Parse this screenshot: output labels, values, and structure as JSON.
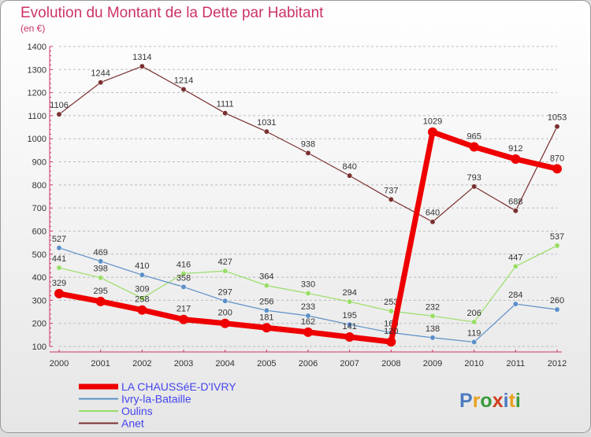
{
  "chart_data": {
    "type": "line",
    "title": "Evolution du Montant de la Dette par Habitant",
    "subtitle": "(en €)",
    "ylim": [
      100,
      1400
    ],
    "y_ticks": [
      100,
      200,
      300,
      400,
      500,
      600,
      700,
      800,
      900,
      1000,
      1100,
      1200,
      1300,
      1400
    ],
    "x": [
      "2000",
      "2001",
      "2002",
      "2003",
      "2004",
      "2005",
      "2006",
      "2007",
      "2008",
      "2009",
      "2010",
      "2011",
      "2012"
    ],
    "grid": "horizontal dashed",
    "legend_position": "bottom-left",
    "series": [
      {
        "name": "LA CHAUSSéE-D'IVRY",
        "color": "#ee0000",
        "values": [
          329,
          295,
          258,
          217,
          200,
          181,
          162,
          141,
          120,
          1029,
          965,
          912,
          870
        ]
      },
      {
        "name": "Ivry-la-Bataille",
        "color": "#5b8fc7",
        "values": [
          527,
          469,
          410,
          358,
          297,
          256,
          233,
          195,
          160,
          138,
          119,
          284,
          260
        ]
      },
      {
        "name": "Oulins",
        "color": "#99dd66",
        "values": [
          441,
          398,
          309,
          416,
          427,
          364,
          330,
          294,
          253,
          232,
          206,
          447,
          537
        ]
      },
      {
        "name": "Anet",
        "color": "#7a3030",
        "values": [
          1106,
          1244,
          1314,
          1214,
          1111,
          1031,
          938,
          840,
          737,
          640,
          793,
          688,
          1053
        ]
      }
    ],
    "labels": {
      "LA CHAUSSéE-D'IVRY": [
        "329",
        "295",
        "258",
        "217",
        "200",
        "181",
        "162",
        "141",
        "120",
        "1029",
        "965",
        "912",
        "870"
      ],
      "Ivry-la-Bataille": [
        "527",
        "469",
        "410",
        "358",
        "297",
        "256",
        "233",
        "195",
        "160",
        "138",
        "119",
        "284",
        "260"
      ],
      "Oulins": [
        "441",
        "398",
        "309",
        "416",
        "427",
        "364",
        "330",
        "294",
        "253",
        "232",
        "206",
        "447",
        "537"
      ],
      "Anet": [
        "1106",
        "1244",
        "1314",
        "1214",
        "1111",
        "1031",
        "938",
        "840",
        "737",
        "640",
        "793",
        "688",
        "1053"
      ]
    }
  },
  "logo": {
    "text": "Proxiti"
  }
}
